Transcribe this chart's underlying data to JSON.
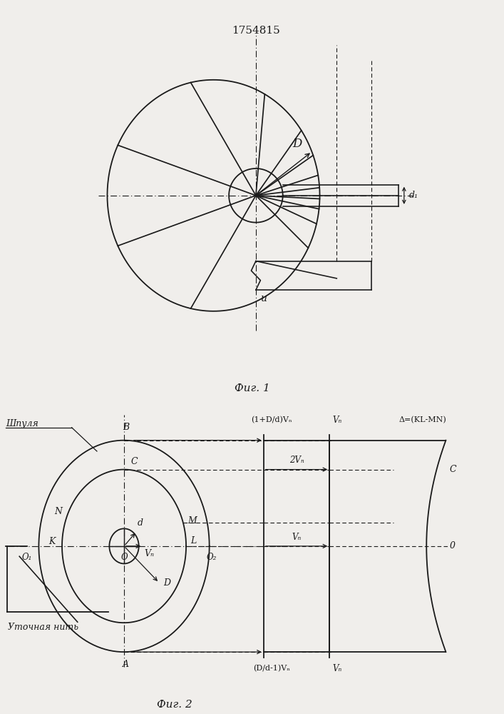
{
  "patent_number": "1754815",
  "fig1_caption": "Фиг. 1",
  "fig2_caption": "Фиг. 2",
  "bg_color": "#f0eeeb",
  "line_color": "#1a1a1a",
  "label_D": "D",
  "label_d1": "d₁",
  "label_u": "u",
  "label_shpulya": "Шпуля",
  "label_utochnaya": "Уточная нить",
  "label_B": "B",
  "label_C": "C",
  "label_M": "M",
  "label_N": "N",
  "label_K": "K",
  "label_L": "L",
  "label_D2": "D",
  "label_d": "d",
  "label_Vn": "Vₙ",
  "label_O": "O",
  "label_O1": "O₁",
  "label_O2": "O₂",
  "label_A": "A",
  "label_C2": "C",
  "label_O3": "0",
  "label_top_left": "(1+D/d)Vₙ",
  "label_top_mid": "Vₙ",
  "label_top_right": "Δ=(KL-MN)",
  "label_bot_left": "(D/d-1)Vₙ",
  "label_bot_mid": "Vₙ",
  "label_2Vn": "2Vₙ"
}
